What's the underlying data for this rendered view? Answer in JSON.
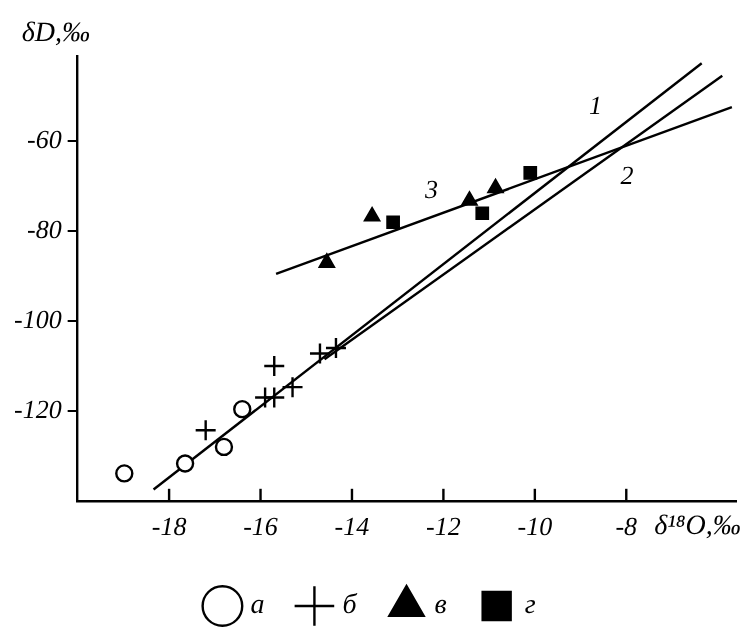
{
  "chart_data": {
    "type": "scatter",
    "xlabel": "δ¹⁸O,‰",
    "ylabel": "δD,‰",
    "xlim": [
      -20,
      -5.6
    ],
    "xticks": [
      -18,
      -16,
      -14,
      -12,
      -10,
      -8
    ],
    "ylim": [
      -140,
      -41
    ],
    "yticks": [
      -60,
      -80,
      -100,
      -120
    ],
    "grid": false,
    "legend": "bottom",
    "series": [
      {
        "name": "а",
        "marker": "circle",
        "color": "#000000",
        "x": [
          -18.98,
          -17.65,
          -16.8,
          -16.4
        ],
        "values": [
          -133.9,
          -131.7,
          -128,
          -119.6
        ]
      },
      {
        "name": "б",
        "marker": "cross",
        "color": "#000000",
        "x": [
          -17.2,
          -15.9,
          -15.7,
          -15.7,
          -15.3,
          -14.7,
          -14.35
        ],
        "values": [
          -124.3,
          -117,
          -117,
          -110,
          -114.7,
          -107.2,
          -106
        ]
      },
      {
        "name": "в",
        "marker": "triangle",
        "color": "#000000",
        "x": [
          -14.55,
          -13.56,
          -11.43,
          -10.86
        ],
        "values": [
          -87,
          -76.7,
          -73.2,
          -70.4
        ]
      },
      {
        "name": "г",
        "marker": "square",
        "color": "#000000",
        "x": [
          -13.1,
          -11.15,
          -10.1
        ],
        "values": [
          -78,
          -76,
          -67
        ]
      },
      {
        "name": "1",
        "type": "line",
        "marker": "none",
        "color": "#000000",
        "x": [
          -18.34,
          -6.35
        ],
        "values": [
          -137.5,
          -42.6
        ]
      },
      {
        "name": "2",
        "type": "line",
        "marker": "none",
        "color": "#000000",
        "x": [
          -14.6,
          -5.9
        ],
        "values": [
          -108.5,
          -45.4
        ]
      },
      {
        "name": "3",
        "type": "line",
        "marker": "none",
        "color": "#000000",
        "x": [
          -15.66,
          -5.69
        ],
        "values": [
          -89.5,
          -52.4
        ]
      }
    ]
  }
}
